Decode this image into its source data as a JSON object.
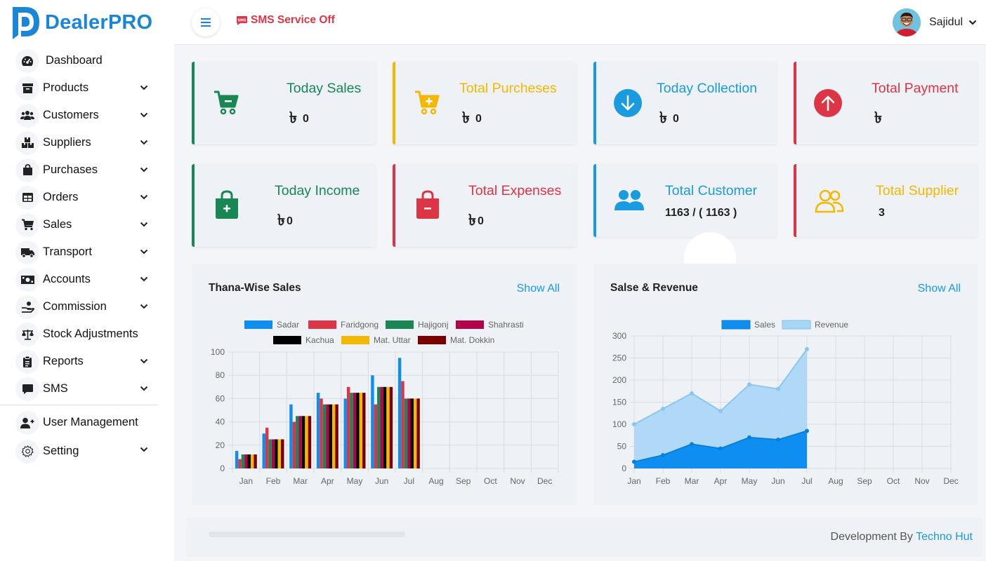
{
  "app": {
    "name": "DealerPRO"
  },
  "header": {
    "sms_status": "SMS Service Off",
    "user_name": "Sajidul"
  },
  "sidebar": {
    "items": [
      {
        "label": "Dashboard",
        "icon": "gauge-icon",
        "expandable": false
      },
      {
        "label": "Products",
        "icon": "archive-box-icon",
        "expandable": true
      },
      {
        "label": "Customers",
        "icon": "users-icon",
        "expandable": true
      },
      {
        "label": "Suppliers",
        "icon": "boxes-icon",
        "expandable": true
      },
      {
        "label": "Purchases",
        "icon": "shopping-bag-icon",
        "expandable": true
      },
      {
        "label": "Orders",
        "icon": "table-icon",
        "expandable": true
      },
      {
        "label": "Sales",
        "icon": "cart-icon",
        "expandable": true
      },
      {
        "label": "Transport",
        "icon": "truck-icon",
        "expandable": true
      },
      {
        "label": "Accounts",
        "icon": "money-bill-icon",
        "expandable": true
      },
      {
        "label": "Commission",
        "icon": "hand-coin-icon",
        "expandable": true
      },
      {
        "label": "Stock Adjustments",
        "icon": "balance-scale-icon",
        "expandable": false
      },
      {
        "label": "Reports",
        "icon": "clipboard-icon",
        "expandable": true
      },
      {
        "label": "SMS",
        "icon": "message-icon",
        "expandable": true
      }
    ],
    "bottom_items": [
      {
        "label": "User Management",
        "icon": "user-plus-icon",
        "expandable": false
      },
      {
        "label": "Setting",
        "icon": "gear-icon",
        "expandable": true
      }
    ]
  },
  "stats": {
    "currency": "৳",
    "today_sales": {
      "title": "Today Sales",
      "value": "0",
      "color": "#198754"
    },
    "total_purchases": {
      "title": "Total Purcheses",
      "value": "0",
      "color": "#f5b800"
    },
    "today_collection": {
      "title": "Today Collection",
      "value": "0",
      "color": "#1a9be0"
    },
    "total_payment": {
      "title": "Total Payment",
      "value": "",
      "color": "#dc3545"
    },
    "today_income": {
      "title": "Today Income",
      "value": "0",
      "color": "#198754"
    },
    "total_expenses": {
      "title": "Total Expenses",
      "value": "0",
      "color": "#dc3545"
    },
    "total_customer": {
      "title": "Total Customer",
      "value": "1163 / ( 1163 )",
      "color": "#1a9be0"
    },
    "total_supplier": {
      "title": "Total Supplier",
      "value": "3",
      "color": "#f5b800"
    }
  },
  "panels": {
    "thana": {
      "title": "Thana-Wise Sales",
      "link": "Show All"
    },
    "revenue": {
      "title": "Salse & Revenue",
      "link": "Show All"
    }
  },
  "chart_data": [
    {
      "type": "bar",
      "categories": [
        "Jan",
        "Feb",
        "Mar",
        "Apr",
        "May",
        "Jun",
        "Jul",
        "Aug",
        "Sep",
        "Oct",
        "Nov",
        "Dec"
      ],
      "series": [
        {
          "name": "Sadar",
          "color": "#0d8ef0",
          "values": [
            15,
            30,
            55,
            65,
            60,
            80,
            95,
            null,
            null,
            null,
            null,
            null
          ]
        },
        {
          "name": "Faridgong",
          "color": "#dc3545",
          "values": [
            8,
            35,
            40,
            60,
            70,
            55,
            75,
            null,
            null,
            null,
            null,
            null
          ]
        },
        {
          "name": "Hajigonj",
          "color": "#198754",
          "values": [
            12,
            25,
            45,
            55,
            65,
            70,
            60,
            null,
            null,
            null,
            null,
            null
          ]
        },
        {
          "name": "Shahrasti",
          "color": "#b5004a",
          "values": [
            12,
            25,
            45,
            55,
            65,
            70,
            60,
            null,
            null,
            null,
            null,
            null
          ]
        },
        {
          "name": "Kachua",
          "color": "#000000",
          "values": [
            12,
            25,
            45,
            55,
            65,
            70,
            60,
            null,
            null,
            null,
            null,
            null
          ]
        },
        {
          "name": "Mat. Uttar",
          "color": "#f5b800",
          "values": [
            12,
            25,
            45,
            55,
            65,
            70,
            60,
            null,
            null,
            null,
            null,
            null
          ]
        },
        {
          "name": "Mat. Dokkin",
          "color": "#7a0000",
          "values": [
            12,
            25,
            45,
            55,
            65,
            70,
            60,
            null,
            null,
            null,
            null,
            null
          ]
        }
      ],
      "ylim": [
        0,
        100
      ],
      "yticks": [
        0,
        20,
        40,
        60,
        80,
        100
      ],
      "grid": true,
      "legend": "top"
    },
    {
      "type": "area",
      "categories": [
        "Jan",
        "Feb",
        "Mar",
        "Apr",
        "May",
        "Jun",
        "Jul",
        "Aug",
        "Sep",
        "Oct",
        "Nov",
        "Dec"
      ],
      "series": [
        {
          "name": "Sales",
          "color": "#0d8ef0",
          "values": [
            15,
            30,
            55,
            45,
            70,
            65,
            85,
            null,
            null,
            null,
            null,
            null
          ]
        },
        {
          "name": "Revenue",
          "color": "#a8d6f7",
          "values": [
            100,
            135,
            170,
            130,
            190,
            180,
            270,
            null,
            null,
            null,
            null,
            null
          ]
        }
      ],
      "ylim": [
        0,
        300
      ],
      "yticks": [
        0,
        50,
        100,
        150,
        200,
        250,
        300
      ],
      "grid": true,
      "legend": "top"
    }
  ]
}
